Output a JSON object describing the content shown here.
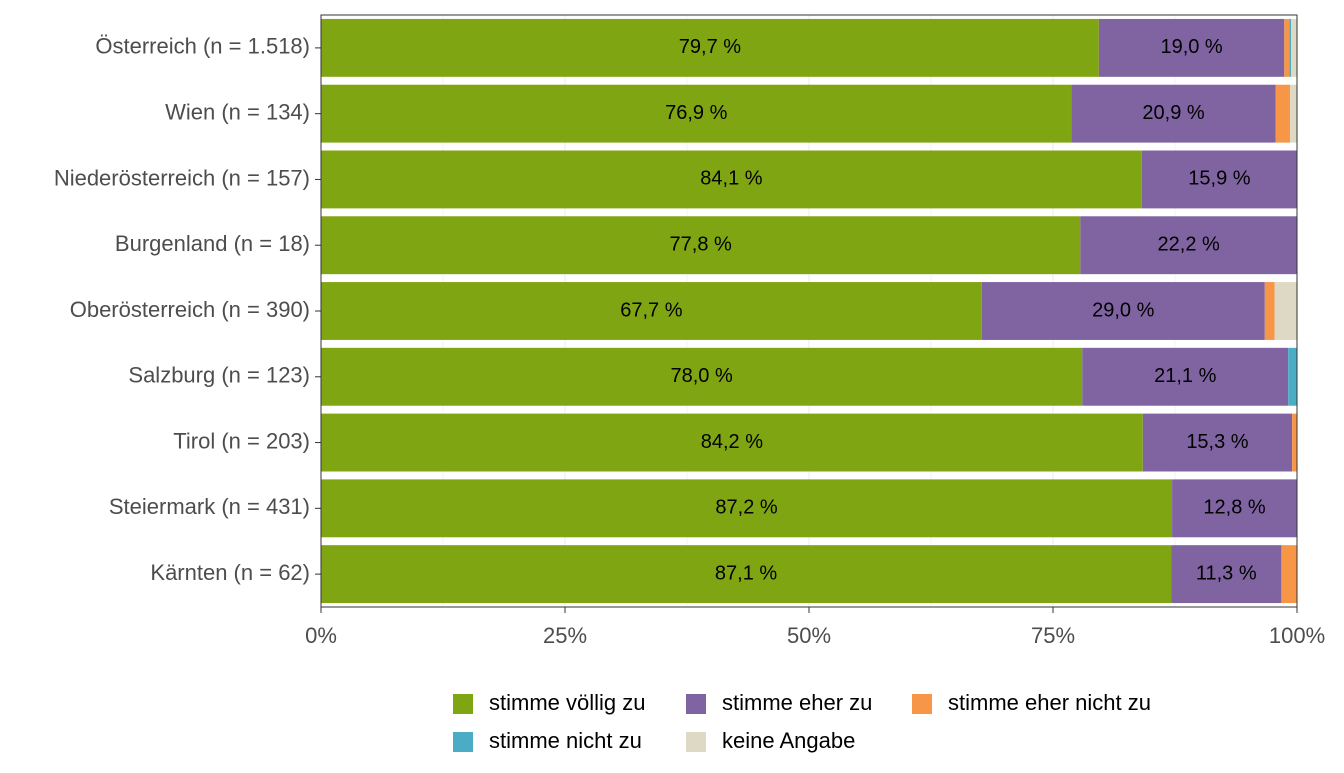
{
  "chart_data": {
    "type": "stacked-barh",
    "categories": [
      "Österreich (n = 1.518)",
      "Wien (n = 134)",
      "Niederösterreich (n = 157)",
      "Burgenland (n = 18)",
      "Oberösterreich (n = 390)",
      "Salzburg (n = 123)",
      "Tirol (n = 203)",
      "Steiermark (n = 431)",
      "Kärnten (n = 62)"
    ],
    "series": [
      {
        "name": "stimme völlig zu",
        "color": "#80a512",
        "values": [
          79.7,
          76.9,
          84.1,
          77.8,
          67.7,
          78.0,
          84.2,
          87.2,
          87.1
        ],
        "value_labels": [
          "79,7 %",
          "76,9 %",
          "84,1 %",
          "77,8 %",
          "67,7 %",
          "78,0 %",
          "84,2 %",
          "87,2 %",
          "87,1 %"
        ]
      },
      {
        "name": "stimme eher zu",
        "color": "#8064a2",
        "values": [
          19.0,
          20.9,
          15.9,
          22.2,
          29.0,
          21.1,
          15.3,
          12.8,
          11.3
        ],
        "value_labels": [
          "19,0 %",
          "20,9 %",
          "15,9 %",
          "22,2 %",
          "29,0 %",
          "21,1 %",
          "15,3 %",
          "12,8 %",
          "11,3 %"
        ]
      },
      {
        "name": "stimme eher nicht zu",
        "color": "#f79646",
        "values": [
          0.5,
          1.5,
          0,
          0,
          1.0,
          0,
          0.5,
          0,
          1.6
        ]
      },
      {
        "name": "stimme nicht zu",
        "color": "#4bacc6",
        "values": [
          0.2,
          0,
          0,
          0,
          0,
          0.9,
          0,
          0,
          0
        ]
      },
      {
        "name": "keine Angabe",
        "color": "#ddd9c4",
        "values": [
          0.6,
          0.7,
          0,
          0,
          2.3,
          0,
          0,
          0,
          0
        ]
      }
    ],
    "xlim": [
      0,
      100
    ],
    "xticks": [
      {
        "value": 0,
        "label": "0%"
      },
      {
        "value": 25,
        "label": "25%"
      },
      {
        "value": 50,
        "label": "50%"
      },
      {
        "value": 75,
        "label": "75%"
      },
      {
        "value": 100,
        "label": "100%"
      }
    ],
    "grid": true
  }
}
